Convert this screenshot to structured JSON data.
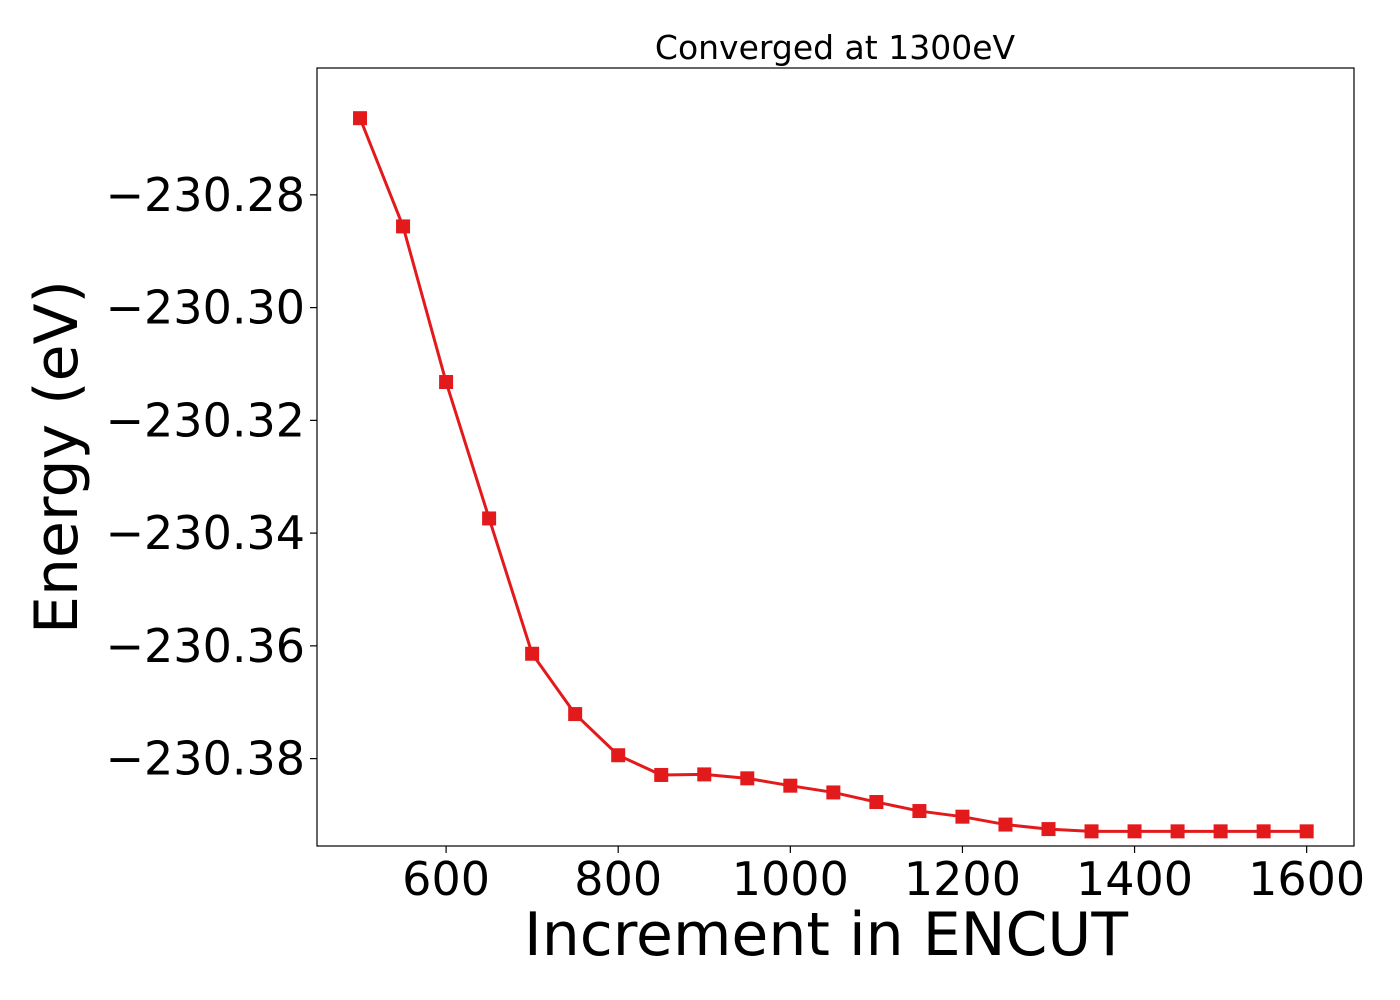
{
  "chart_data": {
    "type": "line",
    "title": "Converged at 1300eV",
    "xlabel": "Increment in ENCUT",
    "ylabel": "Energy (eV)",
    "xlim": [
      450,
      1655
    ],
    "ylim": [
      -230.3955,
      -230.2575
    ],
    "x_ticks": [
      600,
      800,
      1000,
      1200,
      1400,
      1600
    ],
    "x_tick_labels": [
      "600",
      "800",
      "1000",
      "1200",
      "1400",
      "1600"
    ],
    "y_ticks": [
      -230.28,
      -230.3,
      -230.32,
      -230.34,
      -230.36,
      -230.38
    ],
    "y_tick_labels": [
      "−230.28",
      "−230.30",
      "−230.32",
      "−230.34",
      "−230.36",
      "−230.38"
    ],
    "grid": false,
    "marker": "square",
    "color": "#e31a1c",
    "series": [
      {
        "x": [
          500,
          550,
          600,
          650,
          700,
          750,
          800,
          850,
          900,
          950,
          1000,
          1050,
          1100,
          1150,
          1200,
          1250,
          1300,
          1350,
          1400,
          1450,
          1500,
          1550,
          1600
        ],
        "values": [
          -230.2664,
          -230.2856,
          -230.3132,
          -230.3374,
          -230.3614,
          -230.3721,
          -230.3794,
          -230.3829,
          -230.3828,
          -230.3835,
          -230.3848,
          -230.386,
          -230.3877,
          -230.3893,
          -230.3903,
          -230.3917,
          -230.3925,
          -230.3929,
          -230.3929,
          -230.3929,
          -230.3929,
          -230.3929,
          -230.3929
        ]
      }
    ]
  }
}
